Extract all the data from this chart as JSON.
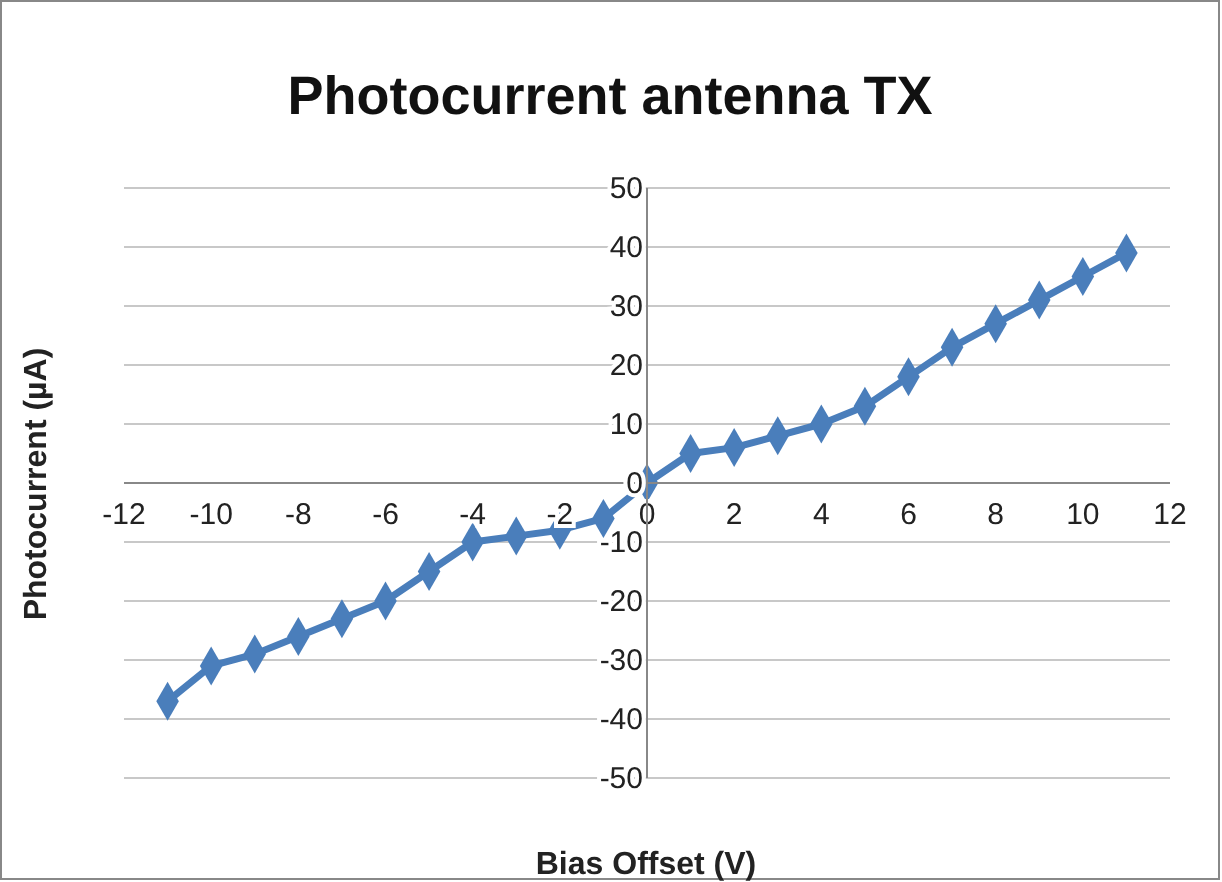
{
  "chart_data": {
    "type": "line",
    "title": "Photocurrent antenna TX",
    "xlabel": "Bias Offset (V)",
    "ylabel": "Photocurrent (µA)",
    "x": [
      -11,
      -10,
      -9,
      -8,
      -7,
      -6,
      -5,
      -4,
      -3,
      -2,
      -1,
      0,
      1,
      2,
      3,
      4,
      5,
      6,
      7,
      8,
      9,
      10,
      11
    ],
    "series": [
      {
        "color": "#4a7ebb",
        "values": [
          -37,
          -31,
          -29,
          -26,
          -23,
          -20,
          -15,
          -10,
          -9,
          -8,
          -6,
          0,
          5,
          6,
          8,
          10,
          13,
          18,
          23,
          27,
          31,
          35,
          39
        ]
      }
    ],
    "xlim": [
      -12,
      12
    ],
    "xticks": [
      -12,
      -10,
      -8,
      -6,
      -4,
      -2,
      0,
      2,
      4,
      6,
      8,
      10,
      12
    ],
    "ylim": [
      -50,
      50
    ],
    "yticks": [
      -50,
      -40,
      -30,
      -20,
      -10,
      0,
      10,
      20,
      30,
      40,
      50
    ],
    "grid": "y",
    "marker": "diamond",
    "line_style": "solid"
  }
}
